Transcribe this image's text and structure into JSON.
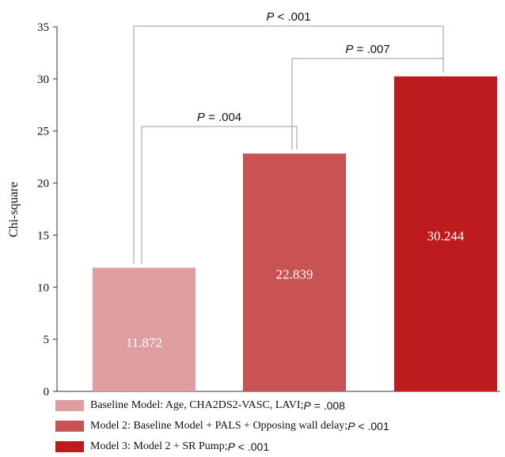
{
  "chart_data": {
    "type": "bar",
    "ylabel": "Chi-square",
    "ylim": [
      0,
      35
    ],
    "yticks": [
      0,
      5,
      10,
      15,
      20,
      25,
      30,
      35
    ],
    "categories": [
      "Baseline Model: Age, CHA2DS2-VASC, LAVI;",
      "Model 2: Baseline Model + PALS + Opposing wall delay;",
      "Model 3: Model 2 + SR Pump;"
    ],
    "values": [
      11.872,
      22.839,
      30.244
    ],
    "value_labels": [
      "11.872",
      "22.839",
      "30.244"
    ],
    "colors": [
      "#df9fa1",
      "#c95252",
      "#be1b1e"
    ],
    "legend": [
      {
        "label": "Baseline Model: Age, CHA2DS2-VASC, LAVI;",
        "p_symbol": "P",
        "p_value": "= .008"
      },
      {
        "label": "Model 2: Baseline Model + PALS + Opposing wall delay;",
        "p_symbol": "P",
        "p_value": "< .001"
      },
      {
        "label": "Model 3: Model 2 + SR Pump;",
        "p_symbol": "P",
        "p_value": "< .001"
      }
    ],
    "comparisons": [
      {
        "from": 0,
        "to": 1,
        "p_symbol": "P",
        "p_value": "= .004"
      },
      {
        "from": 1,
        "to": 2,
        "p_symbol": "P",
        "p_value": "= .007"
      },
      {
        "from": 0,
        "to": 2,
        "p_symbol": "P",
        "p_value": "< .001"
      }
    ]
  }
}
